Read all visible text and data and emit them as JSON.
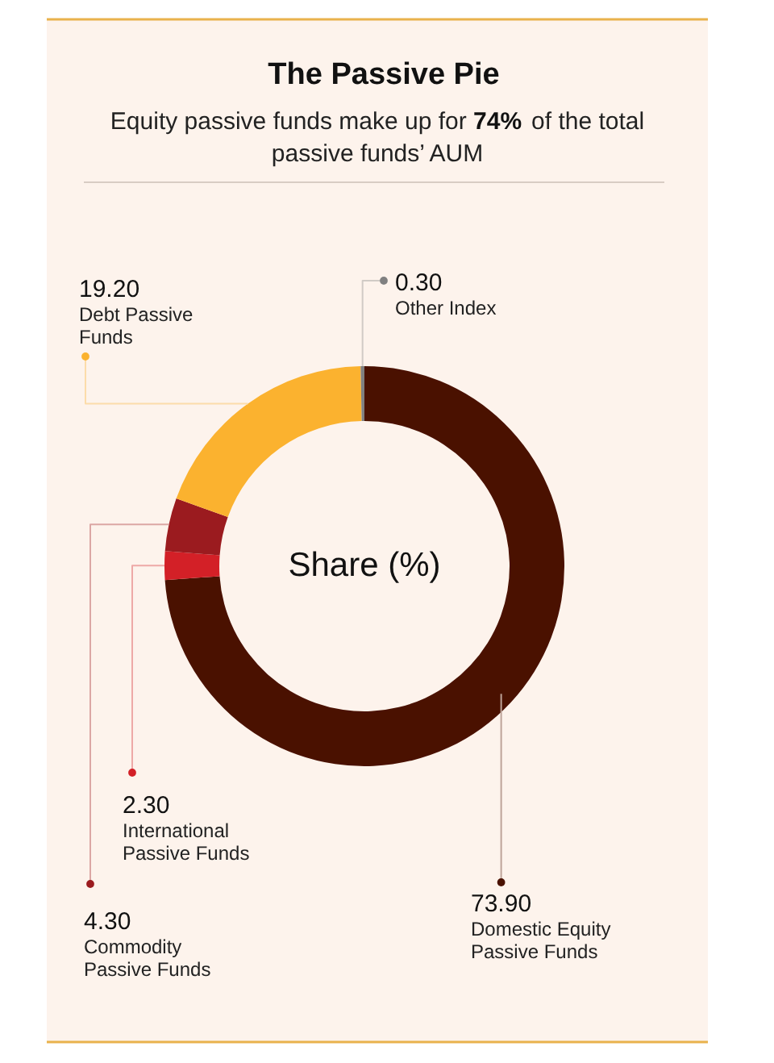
{
  "chart_data": {
    "type": "donut",
    "title": "The Passive Pie",
    "subtitle": "Equity passive funds make up for 74% of the total passive funds’ AUM",
    "categories": [
      "Domestic Equity Passive Funds",
      "International Passive Funds",
      "Commodity Passive Funds",
      "Debt Passive Funds",
      "Other Index"
    ],
    "values": [
      73.9,
      2.3,
      4.3,
      19.2,
      0.3
    ],
    "value_labels": [
      "73.90",
      "2.30",
      "4.30",
      "19.20",
      "0.30"
    ],
    "colors": [
      "#4a1100",
      "#d32027",
      "#9b1b1f",
      "#fbb22f",
      "#808080"
    ],
    "annotations": [
      "Share (%)"
    ]
  }
}
